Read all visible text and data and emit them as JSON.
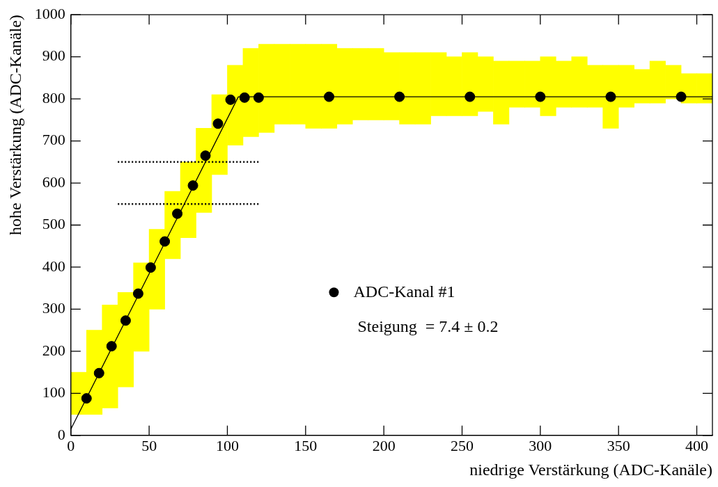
{
  "chart_data": {
    "type": "scatter",
    "xlabel": "niedrige Verstärkung (ADC-Kanäle)",
    "ylabel": "hohe Verstärkung (ADC-Kanäle)",
    "xlim": [
      0,
      410
    ],
    "ylim": [
      0,
      1000
    ],
    "xticks": [
      0,
      50,
      100,
      150,
      200,
      250,
      300,
      350,
      400
    ],
    "yticks": [
      0,
      100,
      200,
      300,
      400,
      500,
      600,
      700,
      800,
      900,
      1000
    ],
    "legend": "right",
    "annotations": [
      "Steigung  = 7.4 ± 0.2"
    ],
    "series": [
      {
        "type": "bar",
        "color": "#ffff00",
        "x": [
          5,
          15,
          25,
          35,
          45,
          55,
          65,
          75,
          85,
          95,
          105,
          115,
          125,
          135,
          145,
          155,
          165,
          175,
          185,
          195,
          205,
          215,
          225,
          235,
          245,
          255,
          265,
          275,
          285,
          295,
          305,
          315,
          325,
          335,
          345,
          355,
          365,
          375,
          385,
          395,
          405
        ],
        "base": [
          50,
          50,
          65,
          115,
          200,
          300,
          420,
          470,
          530,
          620,
          690,
          710,
          720,
          740,
          740,
          730,
          730,
          740,
          750,
          750,
          750,
          740,
          740,
          760,
          760,
          760,
          770,
          740,
          780,
          780,
          760,
          780,
          780,
          780,
          730,
          780,
          790,
          790,
          800,
          790,
          790
        ],
        "values": [
          100,
          200,
          245,
          225,
          210,
          190,
          160,
          180,
          200,
          190,
          190,
          210,
          210,
          190,
          190,
          200,
          200,
          180,
          170,
          170,
          160,
          170,
          170,
          150,
          140,
          150,
          130,
          150,
          110,
          110,
          140,
          110,
          120,
          100,
          150,
          100,
          80,
          100,
          80,
          70,
          70
        ]
      },
      {
        "type": "line",
        "color": "#000000",
        "marker": "none",
        "line_style": "solid",
        "x": [
          0,
          107,
          410
        ],
        "values": [
          15,
          805,
          805
        ]
      },
      {
        "type": "line",
        "color": "#000000",
        "marker": "none",
        "line_style": "dotted",
        "x": [
          30,
          120
        ],
        "values": [
          650,
          650
        ]
      },
      {
        "type": "line",
        "color": "#000000",
        "marker": "none",
        "line_style": "dotted",
        "x": [
          30,
          120
        ],
        "values": [
          550,
          550
        ]
      },
      {
        "type": "scatter",
        "name": "ADC-Kanal #1",
        "color": "#000000",
        "marker": "circle",
        "x": [
          10,
          18,
          26,
          35,
          43,
          51,
          60,
          68,
          78,
          86,
          94,
          102,
          111,
          120,
          165,
          210,
          255,
          300,
          345,
          390
        ],
        "values": [
          88,
          148,
          212,
          273,
          337,
          399,
          461,
          527,
          594,
          665,
          741,
          798,
          803,
          803,
          805,
          805,
          805,
          805,
          805,
          805
        ]
      }
    ]
  }
}
